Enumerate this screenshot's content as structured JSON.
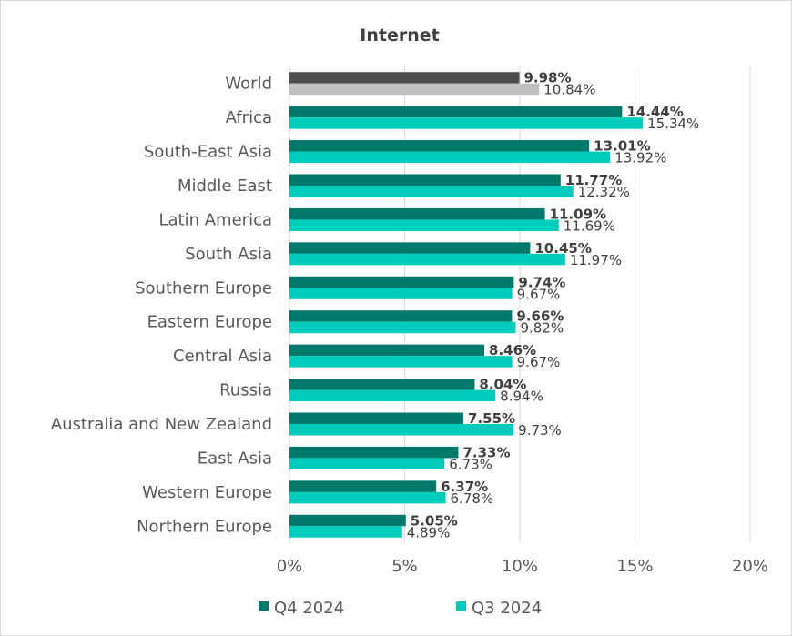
{
  "chart_data": {
    "type": "bar",
    "orientation": "horizontal",
    "title": "Internet",
    "categories": [
      "World",
      "Africa",
      "South-East Asia",
      "Middle East",
      "Latin America",
      "South Asia",
      "Southern Europe",
      "Eastern Europe",
      "Central Asia",
      "Russia",
      "Australia and New Zealand",
      "East Asia",
      "Western Europe",
      "Northern Europe"
    ],
    "series": [
      {
        "name": "Q4 2024",
        "color": "#00796B",
        "world_color": "#4D4D4D",
        "values": [
          9.98,
          14.44,
          13.01,
          11.77,
          11.09,
          10.45,
          9.74,
          9.66,
          8.46,
          8.04,
          7.55,
          7.33,
          6.37,
          5.05
        ],
        "labels": [
          "9.98%",
          "14.44%",
          "13.01%",
          "11.77%",
          "11.09%",
          "10.45%",
          "9.74%",
          "9.66%",
          "8.46%",
          "8.04%",
          "7.55%",
          "7.33%",
          "6.37%",
          "5.05%"
        ]
      },
      {
        "name": "Q3 2024",
        "color": "#00CCBB",
        "world_color": "#BFBFBF",
        "values": [
          10.84,
          15.34,
          13.92,
          12.32,
          11.69,
          11.97,
          9.67,
          9.82,
          9.67,
          8.94,
          9.73,
          6.73,
          6.78,
          4.89
        ],
        "labels": [
          "10.84%",
          "15.34%",
          "13.92%",
          "12.32%",
          "11.69%",
          "11.97%",
          "9.67%",
          "9.82%",
          "9.67%",
          "8.94%",
          "9.73%",
          "6.73%",
          "6.78%",
          "4.89%"
        ]
      }
    ],
    "xlim": [
      0,
      20
    ],
    "xticks": [
      0,
      5,
      10,
      15,
      20
    ],
    "xtick_labels": [
      "0%",
      "5%",
      "10%",
      "15%",
      "20%"
    ],
    "grid": "vertical",
    "legend": "bottom-center"
  }
}
